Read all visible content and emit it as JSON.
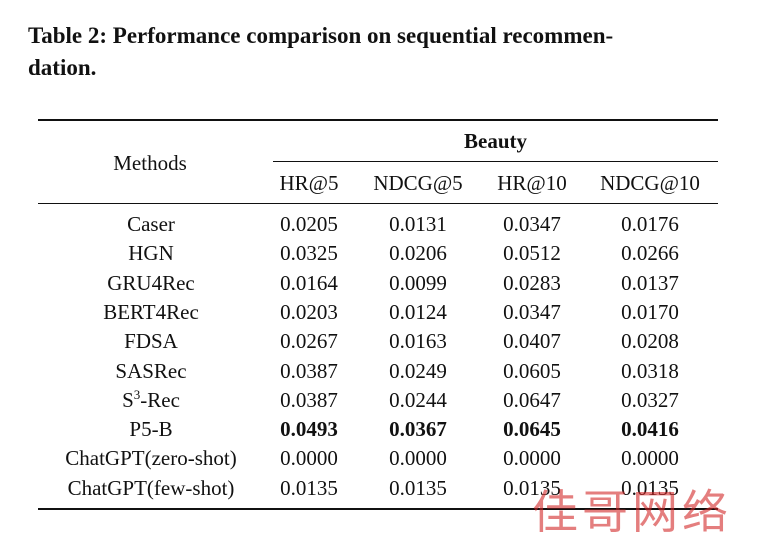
{
  "caption": "Table 2: Performance comparison on sequential recommen-dation.",
  "caption_line1": "Table 2: Performance comparison on sequential recommen-",
  "caption_line2": "dation.",
  "table": {
    "methods_header": "Methods",
    "group_header": "Beauty",
    "columns": [
      "HR@5",
      "NDCG@5",
      "HR@10",
      "NDCG@10"
    ],
    "rows": [
      {
        "method": "Caser",
        "values": [
          "0.0205",
          "0.0131",
          "0.0347",
          "0.0176"
        ]
      },
      {
        "method": "HGN",
        "values": [
          "0.0325",
          "0.0206",
          "0.0512",
          "0.0266"
        ]
      },
      {
        "method": "GRU4Rec",
        "values": [
          "0.0164",
          "0.0099",
          "0.0283",
          "0.0137"
        ]
      },
      {
        "method": "BERT4Rec",
        "values": [
          "0.0203",
          "0.0124",
          "0.0347",
          "0.0170"
        ]
      },
      {
        "method": "FDSA",
        "values": [
          "0.0267",
          "0.0163",
          "0.0407",
          "0.0208"
        ]
      },
      {
        "method": "SASRec",
        "values": [
          "0.0387",
          "0.0249",
          "0.0605",
          "0.0318"
        ]
      },
      {
        "method_prefix": "S",
        "method_sup": "3",
        "method_suffix": "-Rec",
        "values": [
          "0.0387",
          "0.0244",
          "0.0647",
          "0.0327"
        ]
      },
      {
        "method": "P5-B",
        "values": [
          "0.0493",
          "0.0367",
          "0.0645",
          "0.0416"
        ],
        "bold": true
      },
      {
        "method": "ChatGPT(zero-shot)",
        "values": [
          "0.0000",
          "0.0000",
          "0.0000",
          "0.0000"
        ]
      },
      {
        "method": "ChatGPT(few-shot)",
        "values": [
          "0.0135",
          "0.0135",
          "0.0135",
          "0.0135"
        ]
      }
    ]
  },
  "watermark": "佳哥网络"
}
